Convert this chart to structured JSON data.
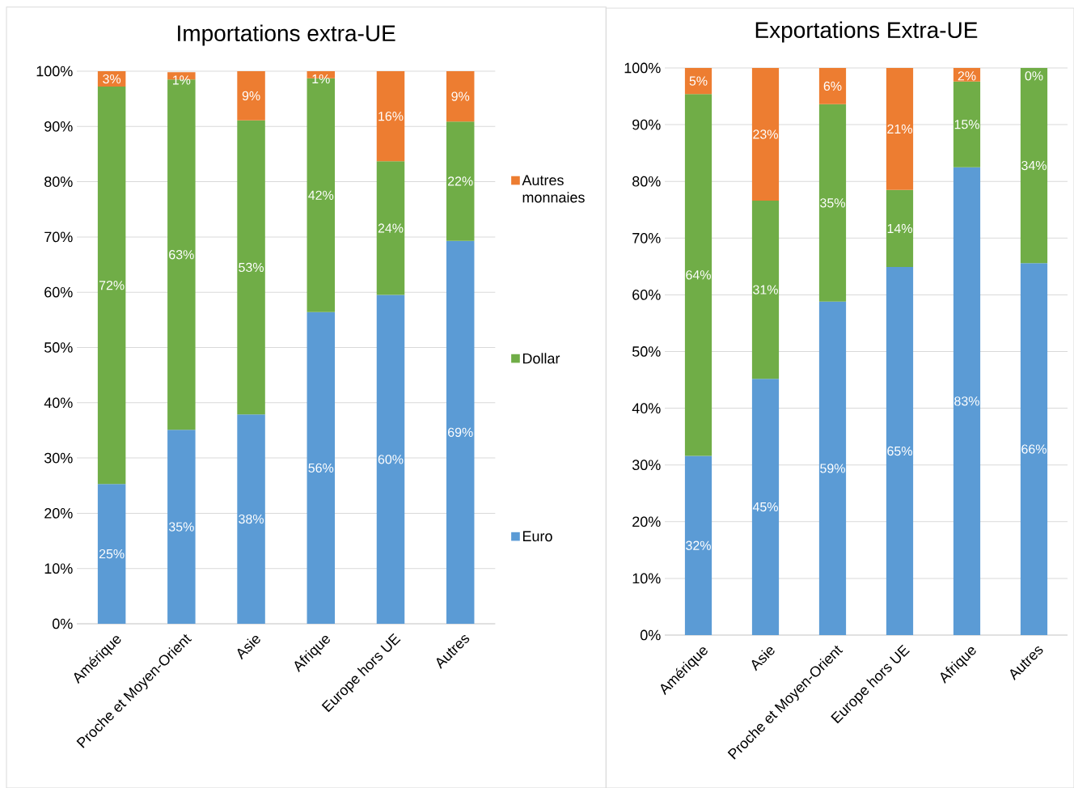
{
  "chart_data": [
    {
      "type": "bar",
      "title": "Importations extra-UE",
      "stacked": true,
      "grid": "y",
      "legend": "right",
      "categories": [
        "Amérique",
        "Proche et Moyen-Orient",
        "Asie",
        "Afrique",
        "Europe hors UE",
        "Autres"
      ],
      "ylim": [
        0,
        100
      ],
      "yticks": [
        {
          "value": 0,
          "label": "0%"
        },
        {
          "value": 10,
          "label": "10%"
        },
        {
          "value": 20,
          "label": "20%"
        },
        {
          "value": 30,
          "label": "30%"
        },
        {
          "value": 40,
          "label": "40%"
        },
        {
          "value": 50,
          "label": "50%"
        },
        {
          "value": 60,
          "label": "60%"
        },
        {
          "value": 70,
          "label": "70%"
        },
        {
          "value": 80,
          "label": "80%"
        },
        {
          "value": 90,
          "label": "90%"
        },
        {
          "value": 100,
          "label": "100%"
        }
      ],
      "series": [
        {
          "name": "Euro",
          "color": "#5b9bd5",
          "values": [
            25.3,
            35.1,
            37.9,
            56.4,
            59.5,
            69.3
          ],
          "value_labels": [
            "25%",
            "35%",
            "38%",
            "56%",
            "60%",
            "69%"
          ]
        },
        {
          "name": "Dollar",
          "color": "#70ad47",
          "values": [
            71.9,
            63.4,
            53.2,
            42.3,
            24.2,
            21.6
          ],
          "value_labels": [
            "72%",
            "63%",
            "53%",
            "42%",
            "24%",
            "22%"
          ]
        },
        {
          "name": "Autres monnaies",
          "color": "#ed7d31",
          "values": [
            2.8,
            1.3,
            8.9,
            1.3,
            16.3,
            9.1
          ],
          "value_labels": [
            "3%",
            "1%",
            "9%",
            "1%",
            "16%",
            "9%"
          ]
        }
      ]
    },
    {
      "type": "bar",
      "title": "Exportations Extra-UE",
      "stacked": true,
      "grid": "y",
      "categories": [
        "Amérique",
        "Asie",
        "Proche et Moyen-Orient",
        "Europe hors UE",
        "Afrique",
        "Autres"
      ],
      "ylim": [
        0,
        100
      ],
      "yticks": [
        {
          "value": 0,
          "label": "0%"
        },
        {
          "value": 10,
          "label": "10%"
        },
        {
          "value": 20,
          "label": "20%"
        },
        {
          "value": 30,
          "label": "30%"
        },
        {
          "value": 40,
          "label": "40%"
        },
        {
          "value": 50,
          "label": "50%"
        },
        {
          "value": 60,
          "label": "60%"
        },
        {
          "value": 70,
          "label": "70%"
        },
        {
          "value": 80,
          "label": "80%"
        },
        {
          "value": 90,
          "label": "90%"
        },
        {
          "value": 100,
          "label": "100%"
        }
      ],
      "series": [
        {
          "color": "#5b9bd5",
          "values": [
            31.6,
            45.2,
            58.8,
            64.9,
            82.5,
            65.6
          ],
          "value_labels": [
            "32%",
            "45%",
            "59%",
            "65%",
            "83%",
            "66%"
          ]
        },
        {
          "color": "#70ad47",
          "values": [
            63.8,
            31.4,
            34.8,
            13.6,
            15.1,
            34.4
          ],
          "value_labels": [
            "64%",
            "31%",
            "35%",
            "14%",
            "15%",
            "34%"
          ]
        },
        {
          "color": "#ed7d31",
          "values": [
            4.6,
            23.4,
            6.4,
            21.5,
            2.4,
            0
          ],
          "value_labels": [
            "5%",
            "23%",
            "6%",
            "21%",
            "2%",
            "0%"
          ]
        }
      ]
    }
  ]
}
